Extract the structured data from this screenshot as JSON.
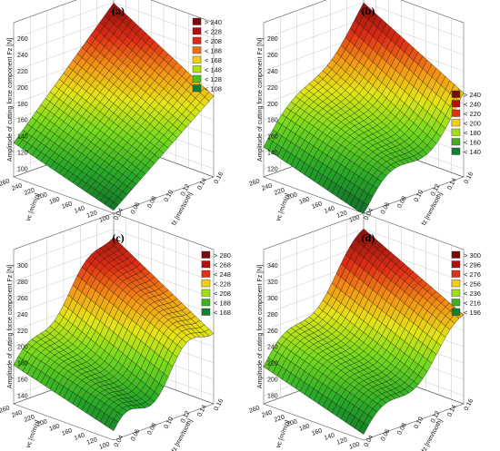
{
  "chart_data": [
    {
      "type": "surface3d",
      "panel_label": "(a)",
      "zlabel": "Amplitude of cutting force component Fz [N]",
      "xlabel": "vc [m/min]",
      "ylabel": "fz [mm/tooth]",
      "x_ticks": [
        "100",
        "120",
        "140",
        "160",
        "180",
        "200",
        "220",
        "240",
        "260"
      ],
      "y_ticks": [
        "0.04",
        "0.06",
        "0.08",
        "0.10",
        "0.12",
        "0.14",
        "0.16"
      ],
      "z_ticks": [
        "100",
        "120",
        "140",
        "160",
        "180",
        "200",
        "220",
        "240",
        "260"
      ],
      "zlim": [
        100,
        270
      ],
      "legend": [
        "> 240",
        "< 228",
        "< 208",
        "< 188",
        "< 168",
        "< 148",
        "< 128",
        "< 108"
      ],
      "legend_colors": [
        "#7a0a0a",
        "#b01010",
        "#e02818",
        "#f07018",
        "#f0d010",
        "#b0e010",
        "#50c020",
        "#108030"
      ],
      "wave": 0
    },
    {
      "type": "surface3d",
      "panel_label": "(b)",
      "zlabel": "Amplitude of cutting force component Fz [N]",
      "xlabel": "vc [m/min]",
      "ylabel": "fz [mm/tooth]",
      "x_ticks": [
        "100",
        "120",
        "140",
        "160",
        "180",
        "200",
        "220",
        "240",
        "260"
      ],
      "y_ticks": [
        "0.04",
        "0.06",
        "0.08",
        "0.10",
        "0.12",
        "0.14",
        "0.16"
      ],
      "z_ticks": [
        "120",
        "140",
        "160",
        "180",
        "200",
        "220",
        "240",
        "260",
        "280"
      ],
      "zlim": [
        120,
        290
      ],
      "legend": [
        "> 240",
        "< 240",
        "< 220",
        "< 200",
        "< 180",
        "< 160",
        "< 140"
      ],
      "legend_colors": [
        "#7a0a0a",
        "#b01010",
        "#e03018",
        "#f0d010",
        "#a0e010",
        "#40b020",
        "#108030"
      ],
      "wave": 1
    },
    {
      "type": "surface3d",
      "panel_label": "(c)",
      "zlabel": "Amplitude of cutting force component Fz [N]",
      "xlabel": "vc [m/min]",
      "ylabel": "fz [mm/tooth]",
      "x_ticks": [
        "100",
        "120",
        "140",
        "160",
        "180",
        "200",
        "220",
        "240",
        "260"
      ],
      "y_ticks": [
        "0.04",
        "0.06",
        "0.08",
        "0.10",
        "0.12",
        "0.14",
        "0.16"
      ],
      "z_ticks": [
        "140",
        "160",
        "180",
        "200",
        "220",
        "240",
        "260",
        "280",
        "300"
      ],
      "zlim": [
        140,
        310
      ],
      "legend": [
        "> 280",
        "< 268",
        "< 248",
        "< 228",
        "< 208",
        "< 188",
        "< 168"
      ],
      "legend_colors": [
        "#7a0a0a",
        "#b01010",
        "#e03018",
        "#f0d010",
        "#a0e010",
        "#40b020",
        "#108030"
      ],
      "wave": 2
    },
    {
      "type": "surface3d",
      "panel_label": "(d)",
      "zlabel": "Amplitude of cutting force component Fz [N]",
      "xlabel": "vc [m/min]",
      "ylabel": "fz [mm/tooth]",
      "x_ticks": [
        "100",
        "120",
        "140",
        "160",
        "180",
        "200",
        "220",
        "240",
        "260"
      ],
      "y_ticks": [
        "0.04",
        "0.06",
        "0.08",
        "0.10",
        "0.12",
        "0.14",
        "0.16"
      ],
      "z_ticks": [
        "180",
        "200",
        "220",
        "240",
        "260",
        "280",
        "300",
        "320",
        "340"
      ],
      "zlim": [
        180,
        350
      ],
      "legend": [
        "> 300",
        "< 296",
        "< 276",
        "< 256",
        "< 236",
        "< 216",
        "< 196"
      ],
      "legend_colors": [
        "#7a0a0a",
        "#b01010",
        "#e03018",
        "#f0d010",
        "#a0e010",
        "#40b020",
        "#108030"
      ],
      "wave": 3
    }
  ]
}
